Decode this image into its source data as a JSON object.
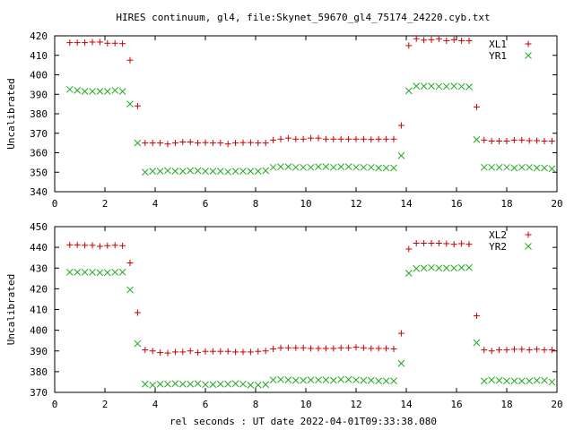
{
  "title": "HIRES continuum, gl4, file:Skynet_59670_gl4_75174_24220.cyb.txt",
  "xlabel": "rel seconds : UT date 2022-04-01T09:33:38.080",
  "colors": {
    "red": "#cc0000",
    "green": "#22aa22",
    "axis": "#000000"
  },
  "chart_data": [
    {
      "type": "scatter",
      "ylabel": "Uncalibrated",
      "xlim": [
        0,
        20
      ],
      "ylim": [
        340,
        420
      ],
      "xticks": [
        0,
        2,
        4,
        6,
        8,
        10,
        12,
        14,
        16,
        18,
        20
      ],
      "yticks": [
        340,
        350,
        360,
        370,
        380,
        390,
        400,
        410,
        420
      ],
      "legend_position": "top-right",
      "series": [
        {
          "name": "XL1",
          "marker": "plus",
          "color": "#cc0000",
          "x": [
            0.6,
            0.9,
            1.2,
            1.5,
            1.8,
            2.1,
            2.4,
            2.7,
            3.0,
            3.3,
            3.6,
            3.9,
            4.2,
            4.5,
            4.8,
            5.1,
            5.4,
            5.7,
            6.0,
            6.3,
            6.6,
            6.9,
            7.2,
            7.5,
            7.8,
            8.1,
            8.4,
            8.7,
            9.0,
            9.3,
            9.6,
            9.9,
            10.2,
            10.5,
            10.8,
            11.1,
            11.4,
            11.7,
            12.0,
            12.3,
            12.6,
            12.9,
            13.2,
            13.5,
            13.8,
            14.1,
            14.4,
            14.7,
            15.0,
            15.3,
            15.6,
            15.9,
            16.2,
            16.5,
            16.8,
            17.1,
            17.4,
            17.7,
            18.0,
            18.3,
            18.6,
            18.9,
            19.2,
            19.5,
            19.8
          ],
          "y": [
            416.5,
            416.5,
            416.5,
            416.8,
            416.8,
            416.2,
            416.2,
            416,
            407.5,
            384,
            365,
            365,
            365,
            364.5,
            365,
            365.5,
            365.5,
            365,
            365.2,
            365,
            365,
            364.5,
            365,
            365.2,
            365.2,
            365,
            365,
            366.5,
            367,
            367.5,
            367,
            367,
            367.5,
            367.5,
            367,
            367,
            367,
            367,
            367,
            367,
            366.8,
            367,
            367,
            367,
            374,
            415,
            418.5,
            417.8,
            418,
            418.5,
            417.5,
            418,
            417.5,
            417.5,
            383.5,
            366.5,
            366,
            366,
            366,
            366.5,
            366.5,
            366.2,
            366.2,
            366,
            366
          ]
        },
        {
          "name": "YR1",
          "marker": "cross",
          "color": "#22aa22",
          "x": [
            0.6,
            0.9,
            1.2,
            1.5,
            1.8,
            2.1,
            2.4,
            2.7,
            3.0,
            3.3,
            3.6,
            3.9,
            4.2,
            4.5,
            4.8,
            5.1,
            5.4,
            5.7,
            6.0,
            6.3,
            6.6,
            6.9,
            7.2,
            7.5,
            7.8,
            8.1,
            8.4,
            8.7,
            9.0,
            9.3,
            9.6,
            9.9,
            10.2,
            10.5,
            10.8,
            11.1,
            11.4,
            11.7,
            12.0,
            12.3,
            12.6,
            12.9,
            13.2,
            13.5,
            13.8,
            14.1,
            14.4,
            14.7,
            15.0,
            15.3,
            15.6,
            15.9,
            16.2,
            16.5,
            16.8,
            17.1,
            17.4,
            17.7,
            18.0,
            18.3,
            18.6,
            18.9,
            19.2,
            19.5,
            19.8
          ],
          "y": [
            392.5,
            392,
            391.5,
            391.5,
            391.5,
            391.5,
            392,
            391.5,
            385,
            365,
            350,
            350.5,
            350.5,
            350.8,
            350.5,
            350.5,
            350.8,
            350.8,
            350.5,
            350.5,
            350.5,
            350.2,
            350.5,
            350.5,
            350.5,
            350.5,
            350.8,
            352.5,
            352.8,
            352.8,
            352.5,
            352.5,
            352.5,
            352.8,
            352.8,
            352.5,
            352.8,
            352.8,
            352.5,
            352.5,
            352.5,
            352.2,
            352.2,
            352.2,
            358.5,
            391.8,
            394.2,
            394.2,
            394.2,
            394,
            394,
            394.2,
            394,
            393.8,
            366.8,
            352.5,
            352.5,
            352.5,
            352.5,
            352.2,
            352.5,
            352.5,
            352.2,
            352.2,
            351.8
          ]
        }
      ]
    },
    {
      "type": "scatter",
      "ylabel": "Uncalibrated",
      "xlim": [
        0,
        20
      ],
      "ylim": [
        370,
        450
      ],
      "xticks": [
        0,
        2,
        4,
        6,
        8,
        10,
        12,
        14,
        16,
        18,
        20
      ],
      "yticks": [
        370,
        380,
        390,
        400,
        410,
        420,
        430,
        440,
        450
      ],
      "legend_position": "top-right",
      "series": [
        {
          "name": "XL2",
          "marker": "plus",
          "color": "#cc0000",
          "x": [
            0.6,
            0.9,
            1.2,
            1.5,
            1.8,
            2.1,
            2.4,
            2.7,
            3.0,
            3.3,
            3.6,
            3.9,
            4.2,
            4.5,
            4.8,
            5.1,
            5.4,
            5.7,
            6.0,
            6.3,
            6.6,
            6.9,
            7.2,
            7.5,
            7.8,
            8.1,
            8.4,
            8.7,
            9.0,
            9.3,
            9.6,
            9.9,
            10.2,
            10.5,
            10.8,
            11.1,
            11.4,
            11.7,
            12.0,
            12.3,
            12.6,
            12.9,
            13.2,
            13.5,
            13.8,
            14.1,
            14.4,
            14.7,
            15.0,
            15.3,
            15.6,
            15.9,
            16.2,
            16.5,
            16.8,
            17.1,
            17.4,
            17.7,
            18.0,
            18.3,
            18.6,
            18.9,
            19.2,
            19.5,
            19.8
          ],
          "y": [
            441.2,
            441.2,
            441,
            441,
            440.5,
            440.8,
            441,
            440.8,
            432.5,
            408.5,
            390.5,
            390,
            389.2,
            389,
            389.5,
            389.5,
            390,
            389.2,
            389.8,
            389.8,
            389.8,
            389.8,
            389.5,
            389.5,
            389.5,
            389.8,
            390,
            391,
            391.5,
            391.5,
            391.5,
            391.5,
            391.2,
            391.2,
            391.2,
            391.2,
            391.5,
            391.5,
            391.8,
            391.5,
            391.2,
            391.2,
            391.2,
            391,
            398.5,
            439.2,
            442,
            442,
            442,
            442,
            441.8,
            441.5,
            441.8,
            441.5,
            407,
            390.5,
            390,
            390.5,
            390.5,
            390.8,
            390.8,
            390.5,
            390.8,
            390.5,
            390.5
          ]
        },
        {
          "name": "YR2",
          "marker": "cross",
          "color": "#22aa22",
          "x": [
            0.6,
            0.9,
            1.2,
            1.5,
            1.8,
            2.1,
            2.4,
            2.7,
            3.0,
            3.3,
            3.6,
            3.9,
            4.2,
            4.5,
            4.8,
            5.1,
            5.4,
            5.7,
            6.0,
            6.3,
            6.6,
            6.9,
            7.2,
            7.5,
            7.8,
            8.1,
            8.4,
            8.7,
            9.0,
            9.3,
            9.6,
            9.9,
            10.2,
            10.5,
            10.8,
            11.1,
            11.4,
            11.7,
            12.0,
            12.3,
            12.6,
            12.9,
            13.2,
            13.5,
            13.8,
            14.1,
            14.4,
            14.7,
            15.0,
            15.3,
            15.6,
            15.9,
            16.2,
            16.5,
            16.8,
            17.1,
            17.4,
            17.7,
            18.0,
            18.3,
            18.6,
            18.9,
            19.2,
            19.5,
            19.8
          ],
          "y": [
            428,
            428,
            428,
            428,
            427.8,
            427.8,
            428,
            428,
            419.5,
            393.5,
            374,
            373.5,
            374,
            374,
            374.2,
            374,
            374,
            374.2,
            373.8,
            373.8,
            374,
            374,
            374.2,
            374,
            373.5,
            373.5,
            373.8,
            376,
            376.2,
            376,
            375.8,
            375.8,
            376,
            376,
            376,
            375.8,
            376.2,
            376.2,
            376,
            375.8,
            375.8,
            375.5,
            375.5,
            375.5,
            384,
            427.5,
            429.8,
            430,
            430.2,
            430,
            430,
            430,
            430.2,
            430.2,
            394,
            375.5,
            376,
            375.8,
            375.5,
            375.5,
            375.5,
            375.5,
            375.8,
            375.8,
            375
          ]
        }
      ]
    }
  ]
}
